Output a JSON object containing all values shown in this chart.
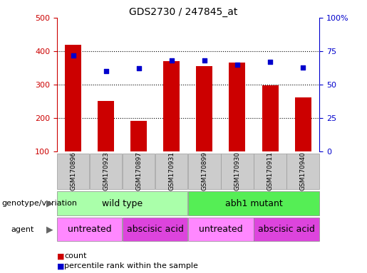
{
  "title": "GDS2730 / 247845_at",
  "samples": [
    "GSM170896",
    "GSM170923",
    "GSM170897",
    "GSM170931",
    "GSM170899",
    "GSM170930",
    "GSM170911",
    "GSM170940"
  ],
  "counts": [
    420,
    251,
    191,
    370,
    355,
    365,
    299,
    261
  ],
  "percentile_ranks": [
    72,
    60,
    62,
    68,
    68,
    65,
    67,
    63
  ],
  "ylim_left": [
    100,
    500
  ],
  "ylim_right": [
    0,
    100
  ],
  "yticks_left": [
    100,
    200,
    300,
    400,
    500
  ],
  "yticks_right": [
    0,
    25,
    50,
    75,
    100
  ],
  "ytick_labels_right": [
    "0",
    "25",
    "50",
    "75",
    "100%"
  ],
  "bar_color": "#cc0000",
  "dot_color": "#0000cc",
  "plot_bg": "#ffffff",
  "tick_label_color_left": "#cc0000",
  "tick_label_color_right": "#0000cc",
  "genotype_groups": [
    {
      "label": "wild type",
      "start": 0,
      "end": 4,
      "color": "#aaffaa"
    },
    {
      "label": "abh1 mutant",
      "start": 4,
      "end": 8,
      "color": "#55ee55"
    }
  ],
  "agent_groups": [
    {
      "label": "untreated",
      "start": 0,
      "end": 2,
      "color": "#ff88ff"
    },
    {
      "label": "abscisic acid",
      "start": 2,
      "end": 4,
      "color": "#dd44dd"
    },
    {
      "label": "untreated",
      "start": 4,
      "end": 6,
      "color": "#ff88ff"
    },
    {
      "label": "abscisic acid",
      "start": 6,
      "end": 8,
      "color": "#dd44dd"
    }
  ],
  "legend_count_color": "#cc0000",
  "legend_dot_color": "#0000cc",
  "label_genotype": "genotype/variation",
  "label_agent": "agent",
  "bar_width": 0.5,
  "dot_size": 18
}
